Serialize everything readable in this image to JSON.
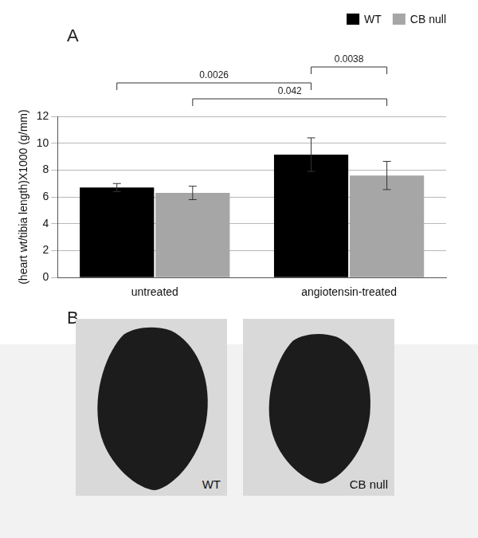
{
  "chart_data": {
    "type": "bar",
    "panel_label": "A",
    "categories": [
      "untreated",
      "angiotensin-treated"
    ],
    "series": [
      {
        "name": "WT",
        "color": "#000000",
        "values": [
          6.7,
          9.15
        ],
        "errors": [
          0.3,
          1.25
        ]
      },
      {
        "name": "CB null",
        "color": "#a6a6a6",
        "values": [
          6.3,
          7.6
        ],
        "errors": [
          0.5,
          1.05
        ]
      }
    ],
    "y_label": "(heart wt/tibia length)X1000 (g/mm)",
    "ylim": [
      0,
      12
    ],
    "yticks": [
      0,
      2,
      4,
      6,
      8,
      10,
      12
    ],
    "grid": true,
    "legend": "top right",
    "annotations": [
      {
        "text": "0.042",
        "from": {
          "category": "untreated",
          "series": "CB null"
        },
        "to": {
          "category": "angiotensin-treated",
          "series": "CB null"
        }
      },
      {
        "text": "0.0026",
        "from": {
          "category": "untreated",
          "series": "WT"
        },
        "to": {
          "category": "angiotensin-treated",
          "series": "WT"
        }
      },
      {
        "text": "0.0038",
        "from": {
          "category": "angiotensin-treated",
          "series": "WT"
        },
        "to": {
          "category": "angiotensin-treated",
          "series": "CB null"
        }
      }
    ]
  },
  "panel_b": {
    "label": "B",
    "images": [
      {
        "label": "WT"
      },
      {
        "label": "CB null"
      }
    ]
  }
}
